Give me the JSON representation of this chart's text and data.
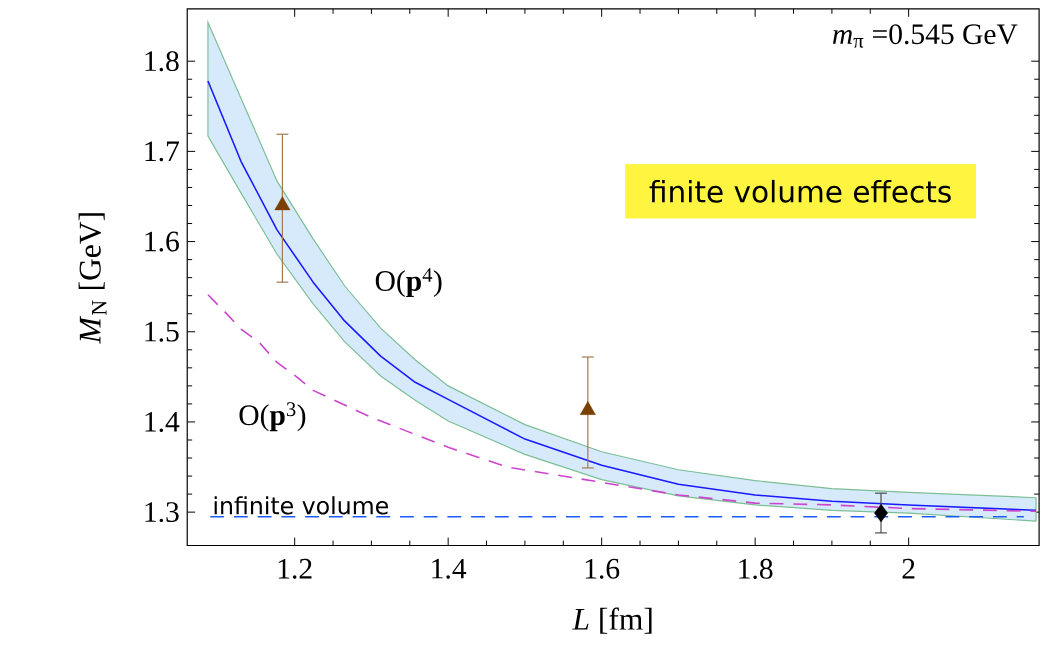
{
  "chart_data": {
    "type": "line",
    "xlabel": "*L* [fm]",
    "ylabel": "*M*$_{N}$ [GeV]",
    "xlim": [
      1.06,
      2.17
    ],
    "ylim": [
      1.263,
      1.858
    ],
    "xticks": [
      1.2,
      1.4,
      1.6,
      1.8,
      2
    ],
    "yticks": [
      1.3,
      1.4,
      1.5,
      1.6,
      1.7,
      1.8
    ],
    "series": [
      {
        "type": "line",
        "color": "#1a1aff",
        "line_style": "solid",
        "marker": "none",
        "x": [
          1.087,
          1.13,
          1.177,
          1.224,
          1.265,
          1.312,
          1.357,
          1.4,
          1.5,
          1.6,
          1.7,
          1.8,
          1.9,
          2.0,
          2.166
        ],
        "values": [
          1.778,
          1.689,
          1.613,
          1.555,
          1.512,
          1.473,
          1.444,
          1.425,
          1.381,
          1.352,
          1.331,
          1.319,
          1.312,
          1.308,
          1.302
        ],
        "lower": [
          1.717,
          1.654,
          1.586,
          1.531,
          1.489,
          1.451,
          1.424,
          1.401,
          1.364,
          1.336,
          1.318,
          1.308,
          1.302,
          1.299,
          1.29
        ],
        "upper": [
          1.843,
          1.759,
          1.667,
          1.603,
          1.551,
          1.504,
          1.469,
          1.44,
          1.397,
          1.367,
          1.347,
          1.335,
          1.326,
          1.322,
          1.316
        ]
      },
      {
        "type": "line",
        "color": "#cc44cc",
        "line_style": "dashed",
        "marker": "none",
        "x": [
          1.087,
          1.108,
          1.13,
          1.154,
          1.177,
          1.201,
          1.224,
          1.3,
          1.4,
          1.477,
          1.6,
          1.7,
          1.8,
          1.9,
          2.0,
          2.166
        ],
        "values": [
          1.541,
          1.523,
          1.503,
          1.488,
          1.466,
          1.451,
          1.435,
          1.405,
          1.372,
          1.35,
          1.333,
          1.319,
          1.31,
          1.308,
          1.304,
          1.301
        ]
      },
      {
        "type": "scatter",
        "color": "#7a4000",
        "marker": "triangle",
        "x": [
          1.184,
          1.582
        ],
        "values": [
          1.64,
          1.413
        ],
        "errors": [
          [
            1.555,
            1.719
          ],
          [
            1.349,
            1.472
          ]
        ]
      },
      {
        "type": "scatter",
        "color": "#000000",
        "marker": "diamond",
        "x": [
          1.964
        ],
        "values": [
          1.299
        ],
        "errors": [
          [
            1.277,
            1.321
          ]
        ]
      }
    ],
    "ref_lines": [
      {
        "axis": "y",
        "value": 1.295,
        "label": "infinite volume",
        "color": "#1a5cff",
        "line_style": "dashed"
      }
    ],
    "annotations": [
      "*m*$_{π}$ =0.545 GeV",
      "finite volume effects",
      "O(**p**$^{4}$)",
      "O(**p**$^{3}$)"
    ]
  }
}
